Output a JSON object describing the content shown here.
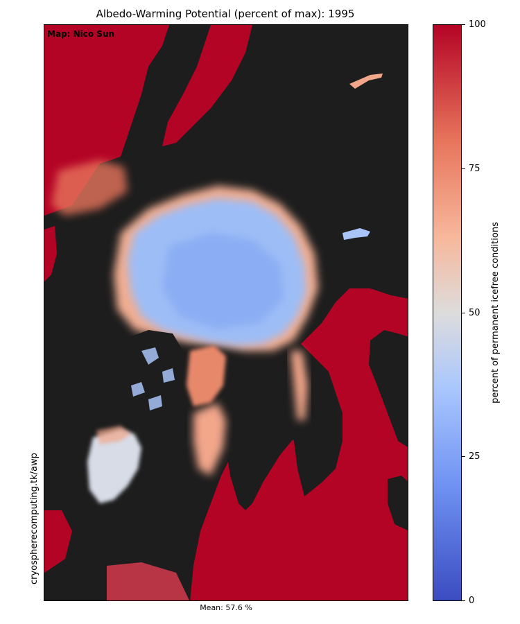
{
  "title": "Albedo-Warming Potential (percent of max): 1995",
  "map": {
    "credit": "Map: Nico Sun",
    "side_url": "cryospherecomputing.tk/awp",
    "mean_label": "Mean: 57.6 %"
  },
  "colorbar": {
    "label": "percent of permanent icefree conditions",
    "range": [
      0,
      100
    ],
    "ticks": [
      "0",
      "25",
      "50",
      "75",
      "100"
    ],
    "colors": {
      "low": "#3b4cc0",
      "mid": "#dddcdc",
      "high": "#b40426",
      "land": "#1d1d1d"
    }
  },
  "regions": {
    "central_arctic_value": 35,
    "open_ocean_value": 100
  }
}
